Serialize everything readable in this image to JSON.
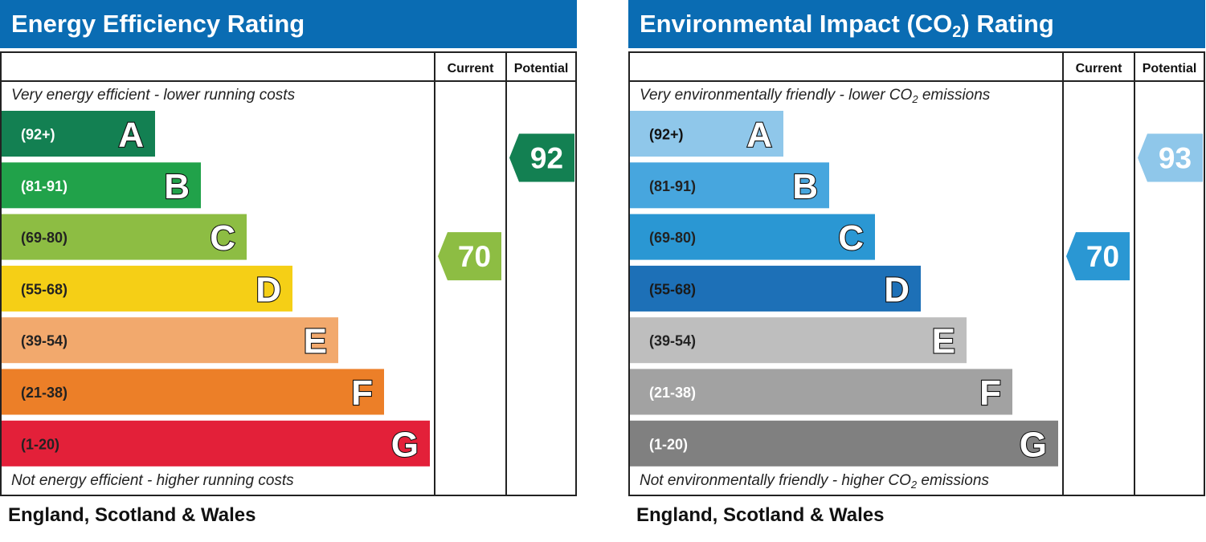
{
  "chart_data": [
    {
      "type": "bar",
      "title": "Energy Efficiency Rating",
      "column_headers": {
        "current": "Current",
        "potential": "Potential"
      },
      "top_note": "Very energy efficient - lower running costs",
      "bottom_note": "Not energy efficient - higher running costs",
      "footer": "England, Scotland & Wales",
      "bands": [
        {
          "letter": "A",
          "range": "(92+)",
          "color": "#138052"
        },
        {
          "letter": "B",
          "range": "(81-91)",
          "color": "#21a24a"
        },
        {
          "letter": "C",
          "range": "(69-80)",
          "color": "#8dbd43"
        },
        {
          "letter": "D",
          "range": "(55-68)",
          "color": "#f5cf16"
        },
        {
          "letter": "E",
          "range": "(39-54)",
          "color": "#f2a96d"
        },
        {
          "letter": "F",
          "range": "(21-38)",
          "color": "#ec7f28"
        },
        {
          "letter": "G",
          "range": "(1-20)",
          "color": "#e32039"
        }
      ],
      "current": {
        "value": 70,
        "band": "C",
        "color": "#8dbd43"
      },
      "potential": {
        "value": 92,
        "band": "A",
        "color": "#138052"
      }
    },
    {
      "type": "bar",
      "title": "Environmental Impact (CO",
      "title_sub": "2",
      "title_tail": ") Rating",
      "column_headers": {
        "current": "Current",
        "potential": "Potential"
      },
      "top_note": "Very environmentally friendly - lower CO",
      "top_note_sub": "2",
      "top_note_tail": " emissions",
      "bottom_note": "Not environmentally friendly - higher CO",
      "bottom_note_sub": "2",
      "bottom_note_tail": " emissions",
      "footer": "England, Scotland & Wales",
      "bands": [
        {
          "letter": "A",
          "range": "(92+)",
          "color": "#8fc7ea"
        },
        {
          "letter": "B",
          "range": "(81-91)",
          "color": "#47a6de"
        },
        {
          "letter": "C",
          "range": "(69-80)",
          "color": "#2a97d3"
        },
        {
          "letter": "D",
          "range": "(55-68)",
          "color": "#1d70b7"
        },
        {
          "letter": "E",
          "range": "(39-54)",
          "color": "#bebebe"
        },
        {
          "letter": "F",
          "range": "(21-38)",
          "color": "#a2a2a2"
        },
        {
          "letter": "G",
          "range": "(1-20)",
          "color": "#808080"
        }
      ],
      "current": {
        "value": 70,
        "band": "C",
        "color": "#2a97d3"
      },
      "potential": {
        "value": 93,
        "band": "A",
        "color": "#8fc7ea"
      }
    }
  ]
}
